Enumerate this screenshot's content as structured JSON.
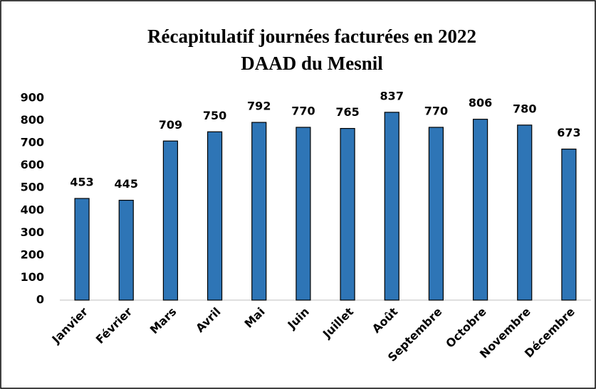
{
  "chart_data": {
    "type": "bar",
    "title": "Récapitulatif journées facturées en 2022",
    "subtitle": "DAAD du Mesnil",
    "categories": [
      "Janvier",
      "Février",
      "Mars",
      "Avril",
      "Mai",
      "Juin",
      "Juillet",
      "Août",
      "Septembre",
      "Octobre",
      "Novembre",
      "Décembre"
    ],
    "values": [
      453,
      445,
      709,
      750,
      792,
      770,
      765,
      837,
      770,
      806,
      780,
      673
    ],
    "color": "#2e75b6",
    "ylim": [
      0,
      900
    ],
    "yticks": [
      0,
      100,
      200,
      300,
      400,
      500,
      600,
      700,
      800,
      900
    ],
    "grid": false
  }
}
